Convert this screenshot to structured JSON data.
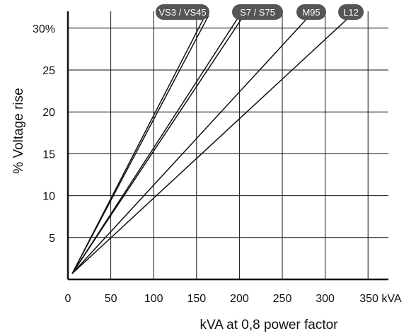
{
  "chart_data": {
    "type": "line",
    "xlabel": "kVA at 0,8 power factor",
    "ylabel": "% Voltage rise",
    "xlim": [
      0,
      360
    ],
    "ylim": [
      0,
      30
    ],
    "x_ticks": [
      0,
      50,
      100,
      150,
      200,
      250,
      300,
      350
    ],
    "x_tick_labels": [
      "0",
      "50",
      "100",
      "150",
      "200",
      "250",
      "300",
      "350 kVA"
    ],
    "y_ticks": [
      5,
      10,
      15,
      20,
      25,
      30
    ],
    "y_tick_labels": [
      "5",
      "10",
      "15",
      "20",
      "25",
      "30%"
    ],
    "grid": true,
    "colors": {
      "line": "#111111",
      "grid": "#111111",
      "label_bg": "#555555",
      "label_text": "#ffffff"
    },
    "series": [
      {
        "name": "VS3 / VS45",
        "x": [
          5,
          160
        ],
        "y": [
          0.7,
          31.5
        ]
      },
      {
        "name": "VS3 / VS45",
        "x": [
          5,
          164
        ],
        "y": [
          0.7,
          31.5
        ]
      },
      {
        "name": "S7 / S75",
        "x": [
          5,
          200
        ],
        "y": [
          0.7,
          31.5
        ]
      },
      {
        "name": "S7 / S75",
        "x": [
          5,
          205
        ],
        "y": [
          0.7,
          31.5
        ]
      },
      {
        "name": "M95",
        "x": [
          5,
          282
        ],
        "y": [
          0.7,
          31.5
        ]
      },
      {
        "name": "L12",
        "x": [
          5,
          330
        ],
        "y": [
          0.7,
          31.5
        ]
      }
    ],
    "line_labels": [
      "VS3 / VS45",
      "S7 / S75",
      "M95",
      "L12"
    ]
  }
}
